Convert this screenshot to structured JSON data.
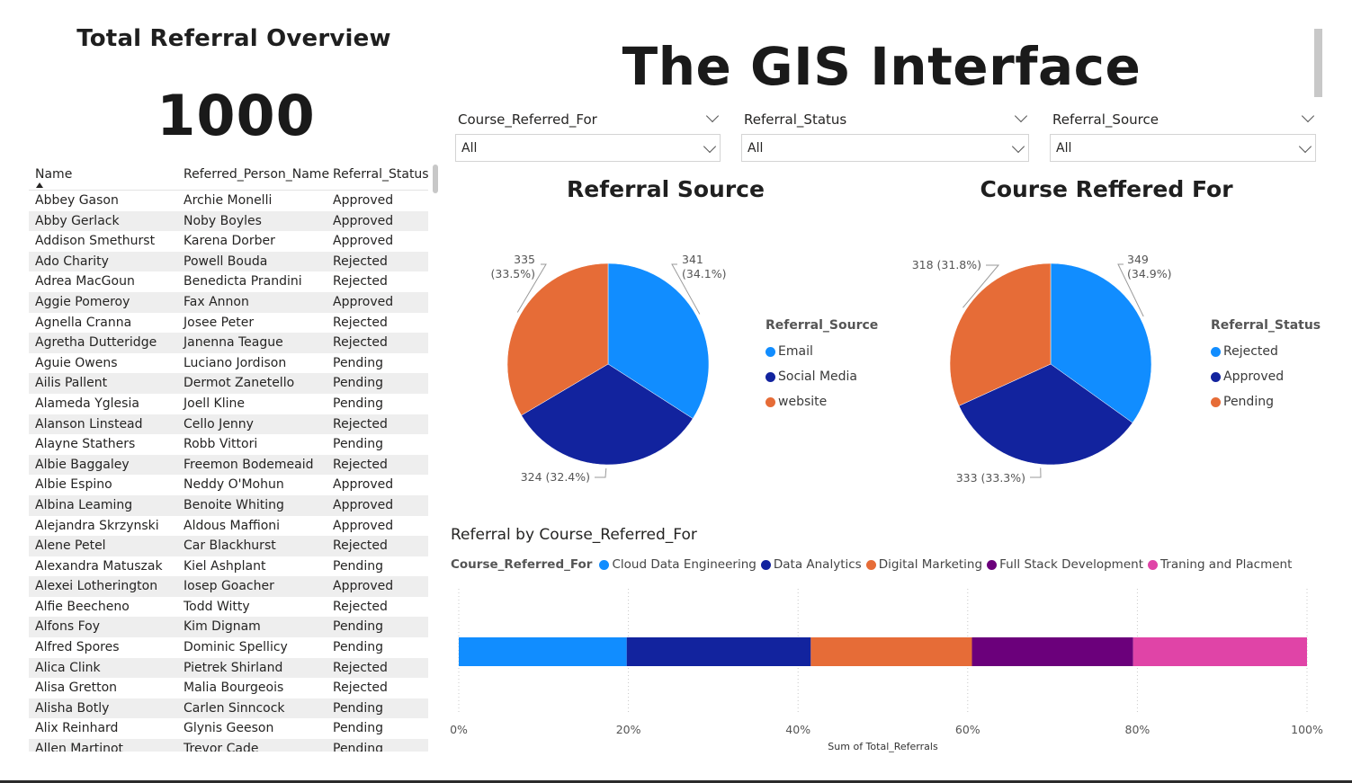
{
  "kpi": {
    "title": "Total Referral Overview",
    "value": "1000"
  },
  "table": {
    "columns": [
      "Name",
      "Referred_Person_Name",
      "Referral_Status"
    ],
    "rows": [
      [
        "Abbey Gason",
        "Archie Monelli",
        "Approved"
      ],
      [
        "Abby Gerlack",
        "Noby Boyles",
        "Approved"
      ],
      [
        "Addison Smethurst",
        "Karena Dorber",
        "Approved"
      ],
      [
        "Ado Charity",
        "Powell Bouda",
        "Rejected"
      ],
      [
        "Adrea MacGoun",
        "Benedicta Prandini",
        "Rejected"
      ],
      [
        "Aggie Pomeroy",
        "Fax Annon",
        "Approved"
      ],
      [
        "Agnella Cranna",
        "Josee Peter",
        "Rejected"
      ],
      [
        "Agretha Dutteridge",
        "Janenna Teague",
        "Rejected"
      ],
      [
        "Aguie Owens",
        "Luciano Jordison",
        "Pending"
      ],
      [
        "Ailis Pallent",
        "Dermot Zanetello",
        "Pending"
      ],
      [
        "Alameda Yglesia",
        "Joell Kline",
        "Pending"
      ],
      [
        "Alanson Linstead",
        "Cello Jenny",
        "Rejected"
      ],
      [
        "Alayne Stathers",
        "Robb Vittori",
        "Pending"
      ],
      [
        "Albie Baggaley",
        "Freemon Bodemeaid",
        "Rejected"
      ],
      [
        "Albie Espino",
        "Neddy O'Mohun",
        "Approved"
      ],
      [
        "Albina Leaming",
        "Benoite Whiting",
        "Approved"
      ],
      [
        "Alejandra Skrzynski",
        "Aldous Maffioni",
        "Approved"
      ],
      [
        "Alene Petel",
        "Car Blackhurst",
        "Rejected"
      ],
      [
        "Alexandra Matuszak",
        "Kiel Ashplant",
        "Pending"
      ],
      [
        "Alexei Lotherington",
        "Iosep Goacher",
        "Approved"
      ],
      [
        "Alfie Beecheno",
        "Todd Witty",
        "Rejected"
      ],
      [
        "Alfons Foy",
        "Kim Dignam",
        "Pending"
      ],
      [
        "Alfred Spores",
        "Dominic Spellicy",
        "Pending"
      ],
      [
        "Alica Clink",
        "Pietrek Shirland",
        "Rejected"
      ],
      [
        "Alisa Gretton",
        "Malia Bourgeois",
        "Rejected"
      ],
      [
        "Alisha Botly",
        "Carlen Sinncock",
        "Pending"
      ],
      [
        "Alix Reinhard",
        "Glynis Geeson",
        "Pending"
      ],
      [
        "Allen Martinot",
        "Trevor Cade",
        "Pending"
      ]
    ]
  },
  "header": {
    "title": "The GIS Interface"
  },
  "slicers": [
    {
      "label": "Course_Referred_For",
      "value": "All"
    },
    {
      "label": "Referral_Status",
      "value": "All"
    },
    {
      "label": "Referral_Source",
      "value": "All"
    }
  ],
  "colors": {
    "blue": "#118DFF",
    "navy": "#12239E",
    "orange": "#E66C37",
    "purple": "#6B007B",
    "pink": "#E044A7"
  },
  "chart_data": [
    {
      "type": "pie",
      "title": "Referral Source",
      "legend_title": "Referral_Source",
      "legend_position": "right",
      "labels": [
        "Email",
        "Social Media",
        "website"
      ],
      "values": [
        341,
        324,
        335
      ],
      "percent_labels": [
        "(34.1%)",
        "(32.4%)",
        "(33.5%)"
      ]
    },
    {
      "type": "pie",
      "title": "Course Reffered For",
      "legend_title": "Referral_Status",
      "legend_position": "right",
      "labels": [
        "Rejected",
        "Approved",
        "Pending"
      ],
      "values": [
        349,
        333,
        318
      ],
      "percent_labels": [
        "(34.9%)",
        "(33.3%)",
        "(31.8%)"
      ]
    },
    {
      "type": "bar",
      "stacked": "100%",
      "title": "Referral by Course_Referred_For",
      "legend_title": "Course_Referred_For",
      "legend_position": "top-left",
      "xlabel": "Sum of Total_Referrals",
      "x_ticks": [
        "0%",
        "20%",
        "40%",
        "60%",
        "80%",
        "100%"
      ],
      "series": [
        {
          "name": "Cloud Data Engineering",
          "values": [
            19.8
          ]
        },
        {
          "name": "Data Analytics",
          "values": [
            21.7
          ]
        },
        {
          "name": "Digital Marketing",
          "values": [
            19.0
          ]
        },
        {
          "name": "Full Stack Development",
          "values": [
            19.0
          ]
        },
        {
          "name": "Traning and Placment",
          "values": [
            20.5
          ]
        }
      ]
    }
  ]
}
